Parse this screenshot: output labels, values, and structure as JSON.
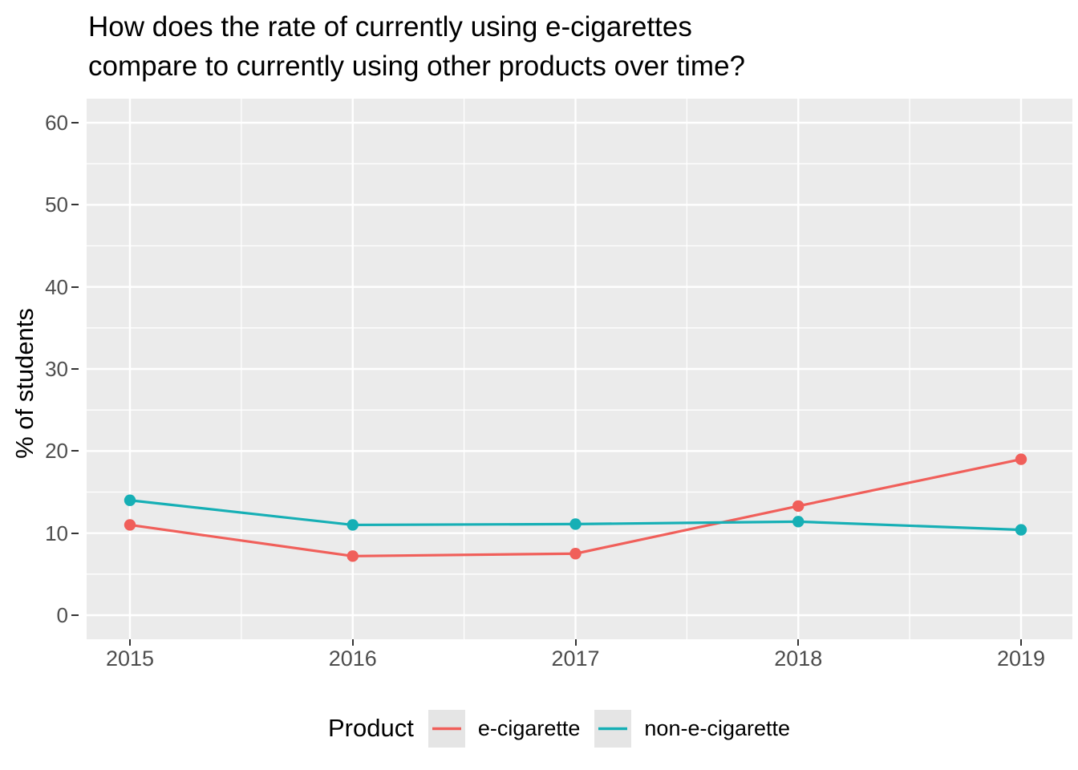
{
  "title": {
    "line1": "How does the rate of currently using e-cigarettes",
    "line2": "compare to currently using other products over time?"
  },
  "chart_data": {
    "type": "line",
    "title": "How does the rate of currently using e-cigarettes compare to currently using other products over time?",
    "x": [
      2015,
      2016,
      2017,
      2018,
      2019
    ],
    "series": [
      {
        "name": "e-cigarette",
        "color": "#F05F5A",
        "values": [
          11.0,
          7.2,
          7.5,
          13.3,
          19.0
        ]
      },
      {
        "name": "non-e-cigarette",
        "color": "#16AFB5",
        "values": [
          14.0,
          11.0,
          11.1,
          11.4,
          10.4
        ]
      }
    ],
    "xlabel": "",
    "ylabel": "% of students",
    "ylim": [
      0,
      60
    ],
    "yticks": [
      0,
      10,
      20,
      30,
      40,
      50,
      60
    ],
    "yticks_minor": [
      5,
      15,
      25,
      35,
      45,
      55
    ],
    "grid": "major-and-minor, white on grey panel",
    "legend": {
      "title": "Product",
      "position": "bottom"
    },
    "marker": "filled-circle"
  },
  "style": {
    "background": "#FFFFFF",
    "panel_bg": "#EBEBEB",
    "grid_color": "#FFFFFF",
    "axis_text_color": "#4D4D4D",
    "tick_color": "#333333",
    "text_color": "#000000",
    "legend_key_bg": "#E5E5E5"
  }
}
